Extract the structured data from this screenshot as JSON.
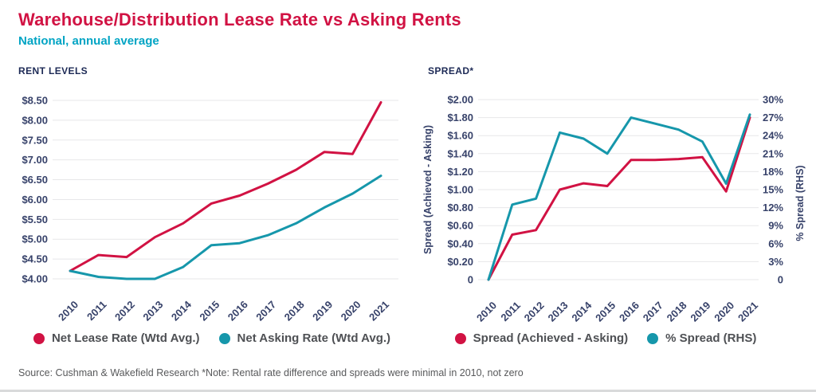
{
  "header": {
    "title": "Warehouse/Distribution Lease Rate vs Asking Rents",
    "subtitle": "National, annual average"
  },
  "source_note": "Source: Cushman & Wakefield Research *Note: Rental rate difference and spreads were minimal in 2010, not zero",
  "colors": {
    "red": "#D11243",
    "teal": "#1697AB",
    "subtitle_teal": "#00A4C4",
    "navy": "#1D2A56",
    "tick_text": "#37426A",
    "grid": "#E7E7E9",
    "legend_text": "#4E5054",
    "source_text": "#58595B"
  },
  "chart_data": [
    {
      "type": "line",
      "title": "RENT LEVELS",
      "x": [
        2010,
        2011,
        2012,
        2013,
        2014,
        2015,
        2016,
        2017,
        2018,
        2019,
        2020,
        2021
      ],
      "ylim": [
        4.0,
        8.5
      ],
      "y_ticks": [
        "$8.50",
        "$8.00",
        "$7.50",
        "$7.00",
        "$6.50",
        "$6.00",
        "$5.50",
        "$5.00",
        "$4.50",
        "$4.00"
      ],
      "grid": true,
      "legend_position": "bottom",
      "series": [
        {
          "name": "Net Lease Rate (Wtd Avg.)",
          "color_key": "red",
          "values": [
            4.2,
            4.6,
            4.55,
            5.05,
            5.4,
            5.9,
            6.1,
            6.4,
            6.75,
            7.2,
            7.15,
            8.45
          ]
        },
        {
          "name": "Net Asking Rate (Wtd Avg.)",
          "color_key": "teal",
          "values": [
            4.2,
            4.05,
            4.0,
            4.0,
            4.3,
            4.85,
            4.9,
            5.1,
            5.4,
            5.8,
            6.15,
            6.6
          ]
        }
      ]
    },
    {
      "type": "line",
      "title": "SPREAD*",
      "x": [
        2010,
        2011,
        2012,
        2013,
        2014,
        2015,
        2016,
        2017,
        2018,
        2019,
        2020,
        2021
      ],
      "left_axis": {
        "label": "Spread (Achieved - Asking)",
        "ylim": [
          0,
          2.0
        ],
        "ticks": [
          "$2.00",
          "$1.80",
          "$1.60",
          "$1.40",
          "$1.20",
          "$1.00",
          "$0.80",
          "$0.60",
          "$0.40",
          "$0.20",
          "0"
        ]
      },
      "right_axis": {
        "label": "% Spread (RHS)",
        "ylim": [
          0,
          30
        ],
        "ticks": [
          "30%",
          "27%",
          "24%",
          "21%",
          "18%",
          "15%",
          "12%",
          "9%",
          "6%",
          "3%",
          "0"
        ]
      },
      "grid": true,
      "legend_position": "bottom",
      "series": [
        {
          "name": "Spread (Achieved - Asking)",
          "color_key": "red",
          "axis": "left",
          "values": [
            0,
            0.5,
            0.55,
            1.0,
            1.07,
            1.04,
            1.33,
            1.33,
            1.34,
            1.36,
            0.98,
            1.8
          ]
        },
        {
          "name": "% Spread (RHS)",
          "color_key": "teal",
          "axis": "right",
          "values": [
            0,
            12.5,
            13.5,
            24.5,
            23.5,
            21,
            27,
            26,
            25,
            23,
            16,
            27.5
          ]
        }
      ]
    }
  ]
}
